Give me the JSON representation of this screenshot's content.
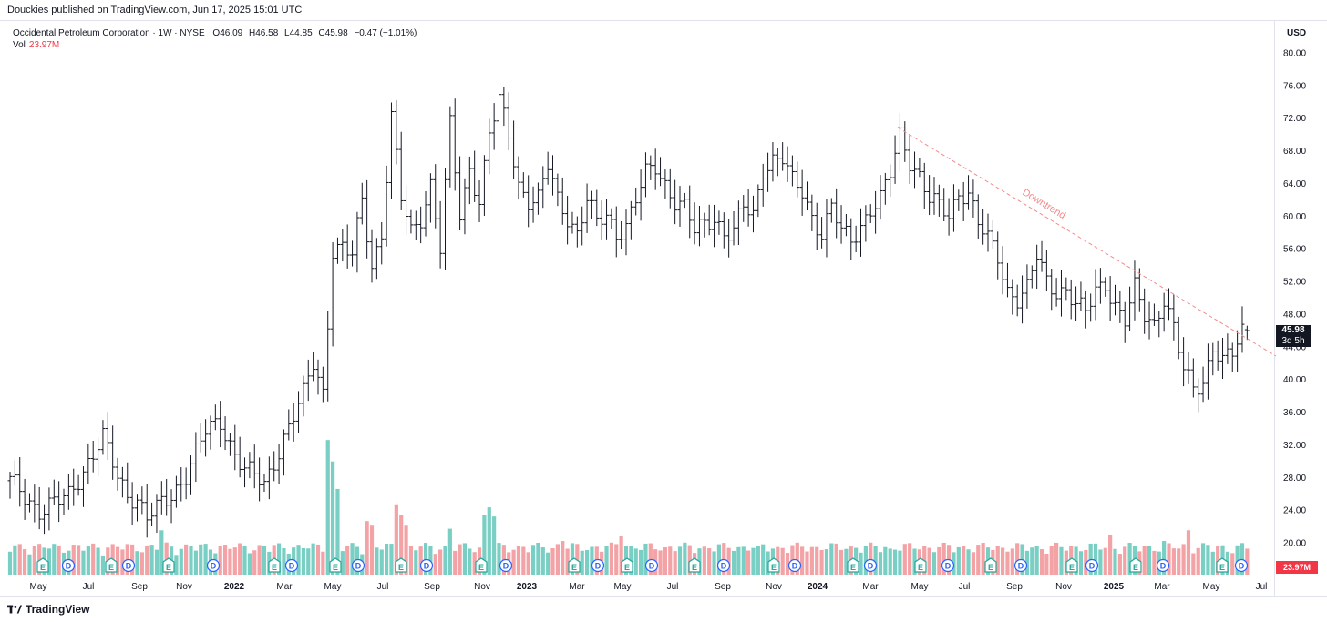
{
  "header": {
    "published": "Douckies published on TradingView.com, Jun 17, 2025 15:01 UTC"
  },
  "legend": {
    "symbol": "Occidental Petroleum Corporation · 1W · NYSE",
    "open": "O46.09",
    "high": "H46.58",
    "low": "L44.85",
    "close": "C45.98",
    "change": "−0.47 (−1.01%)",
    "vol_label": "Vol",
    "vol_value": "23.97M"
  },
  "price_axis": {
    "currency": "USD",
    "last_price": "45.98",
    "countdown": "3d 5h",
    "last_volume": "23.97M"
  },
  "annotation": {
    "downtrend_label": "Downtrend"
  },
  "footer": {
    "brand": "TradingView"
  },
  "colors": {
    "up_volume": "#79cfc3",
    "down_volume": "#f3a3a6",
    "bars": "#131722",
    "trendline": "#f28b8b",
    "earnings": "#26a69a",
    "dividend": "#2962ff"
  },
  "chart_data": {
    "type": "ohlc",
    "interval": "1W",
    "ylim": [
      17.6,
      82
    ],
    "y_ticks": [
      "80.00",
      "76.00",
      "72.00",
      "68.00",
      "64.00",
      "60.00",
      "56.00",
      "52.00",
      "48.00",
      "44.00",
      "40.00",
      "36.00",
      "32.00",
      "28.00",
      "24.00",
      "20.00"
    ],
    "x_ticks": [
      "May",
      "Jul",
      "Sep",
      "Nov",
      "2022",
      "Mar",
      "May",
      "Jul",
      "Sep",
      "Nov",
      "2023",
      "Mar",
      "May",
      "Jul",
      "Sep",
      "Nov",
      "2024",
      "Mar",
      "May",
      "Jul",
      "Sep",
      "Nov",
      "2025",
      "Mar",
      "May",
      "Jul"
    ],
    "anchors": [
      [
        0,
        27.5
      ],
      [
        6,
        24
      ],
      [
        10,
        25
      ],
      [
        12,
        25.8
      ],
      [
        16,
        30
      ],
      [
        19,
        32.8
      ],
      [
        22,
        28
      ],
      [
        24,
        26
      ],
      [
        26,
        25.5
      ],
      [
        28,
        23
      ],
      [
        30,
        24
      ],
      [
        33,
        25.8
      ],
      [
        36,
        28.5
      ],
      [
        38,
        31
      ],
      [
        40,
        33.5
      ],
      [
        43,
        34.8
      ],
      [
        46,
        31
      ],
      [
        48,
        29
      ],
      [
        52,
        27
      ],
      [
        56,
        33
      ],
      [
        60,
        38
      ],
      [
        62,
        42
      ],
      [
        64,
        38.5
      ],
      [
        66,
        56
      ],
      [
        68,
        56
      ],
      [
        70,
        55
      ],
      [
        72,
        62
      ],
      [
        74,
        54
      ],
      [
        76,
        58
      ],
      [
        78,
        72
      ],
      [
        80,
        62
      ],
      [
        82,
        58
      ],
      [
        84,
        60
      ],
      [
        86,
        64
      ],
      [
        88,
        56
      ],
      [
        90,
        71
      ],
      [
        92,
        60
      ],
      [
        94,
        66
      ],
      [
        96,
        62
      ],
      [
        98,
        70
      ],
      [
        100,
        74
      ],
      [
        102,
        70
      ],
      [
        104,
        64
      ],
      [
        106,
        62
      ],
      [
        108,
        62
      ],
      [
        110,
        66
      ],
      [
        112,
        62
      ],
      [
        114,
        60
      ],
      [
        116,
        58
      ],
      [
        118,
        62
      ],
      [
        120,
        59
      ],
      [
        122,
        60
      ],
      [
        124,
        58
      ],
      [
        126,
        59
      ],
      [
        128,
        62
      ],
      [
        130,
        65
      ],
      [
        132,
        66
      ],
      [
        134,
        64
      ],
      [
        136,
        62
      ],
      [
        138,
        61
      ],
      [
        140,
        58
      ],
      [
        142,
        59
      ],
      [
        144,
        60
      ],
      [
        146,
        58
      ],
      [
        148,
        58
      ],
      [
        150,
        61
      ],
      [
        152,
        60
      ],
      [
        154,
        66
      ],
      [
        156,
        67
      ],
      [
        158,
        67
      ],
      [
        160,
        64
      ],
      [
        162,
        63
      ],
      [
        164,
        60
      ],
      [
        166,
        58
      ],
      [
        168,
        61
      ],
      [
        170,
        58
      ],
      [
        172,
        57
      ],
      [
        174,
        59
      ],
      [
        176,
        61
      ],
      [
        178,
        62
      ],
      [
        180,
        65
      ],
      [
        182,
        70
      ],
      [
        184,
        67
      ],
      [
        186,
        65
      ],
      [
        188,
        62
      ],
      [
        190,
        61
      ],
      [
        192,
        60
      ],
      [
        194,
        63
      ],
      [
        196,
        63
      ],
      [
        198,
        59
      ],
      [
        200,
        57
      ],
      [
        202,
        55
      ],
      [
        204,
        51
      ],
      [
        206,
        50
      ],
      [
        208,
        51
      ],
      [
        210,
        55
      ],
      [
        212,
        52
      ],
      [
        214,
        51
      ],
      [
        216,
        51
      ],
      [
        218,
        49
      ],
      [
        220,
        48
      ],
      [
        222,
        51
      ],
      [
        224,
        52
      ],
      [
        226,
        49
      ],
      [
        228,
        47
      ],
      [
        230,
        51
      ],
      [
        232,
        48
      ],
      [
        234,
        47
      ],
      [
        236,
        50
      ],
      [
        238,
        46
      ],
      [
        240,
        41
      ],
      [
        242,
        39
      ],
      [
        244,
        40
      ],
      [
        246,
        44
      ],
      [
        248,
        42
      ],
      [
        250,
        43
      ],
      [
        252,
        46
      ],
      [
        253,
        45.98
      ]
    ],
    "volume_ylim": [
      0,
      90
    ],
    "volume_spikes": {
      "65": 88,
      "66": 74,
      "67": 56,
      "31": 29,
      "32": 21,
      "73": 35,
      "74": 32,
      "79": 46,
      "80": 39,
      "81": 32,
      "97": 39,
      "98": 44,
      "99": 38,
      "90": 30,
      "112": 20,
      "113": 22,
      "124": 20,
      "125": 25,
      "126": 19,
      "153": 19,
      "180": 17,
      "215": 18,
      "225": 26,
      "236": 22,
      "240": 20,
      "241": 29,
      "249": 15,
      "253": 17
    }
  }
}
